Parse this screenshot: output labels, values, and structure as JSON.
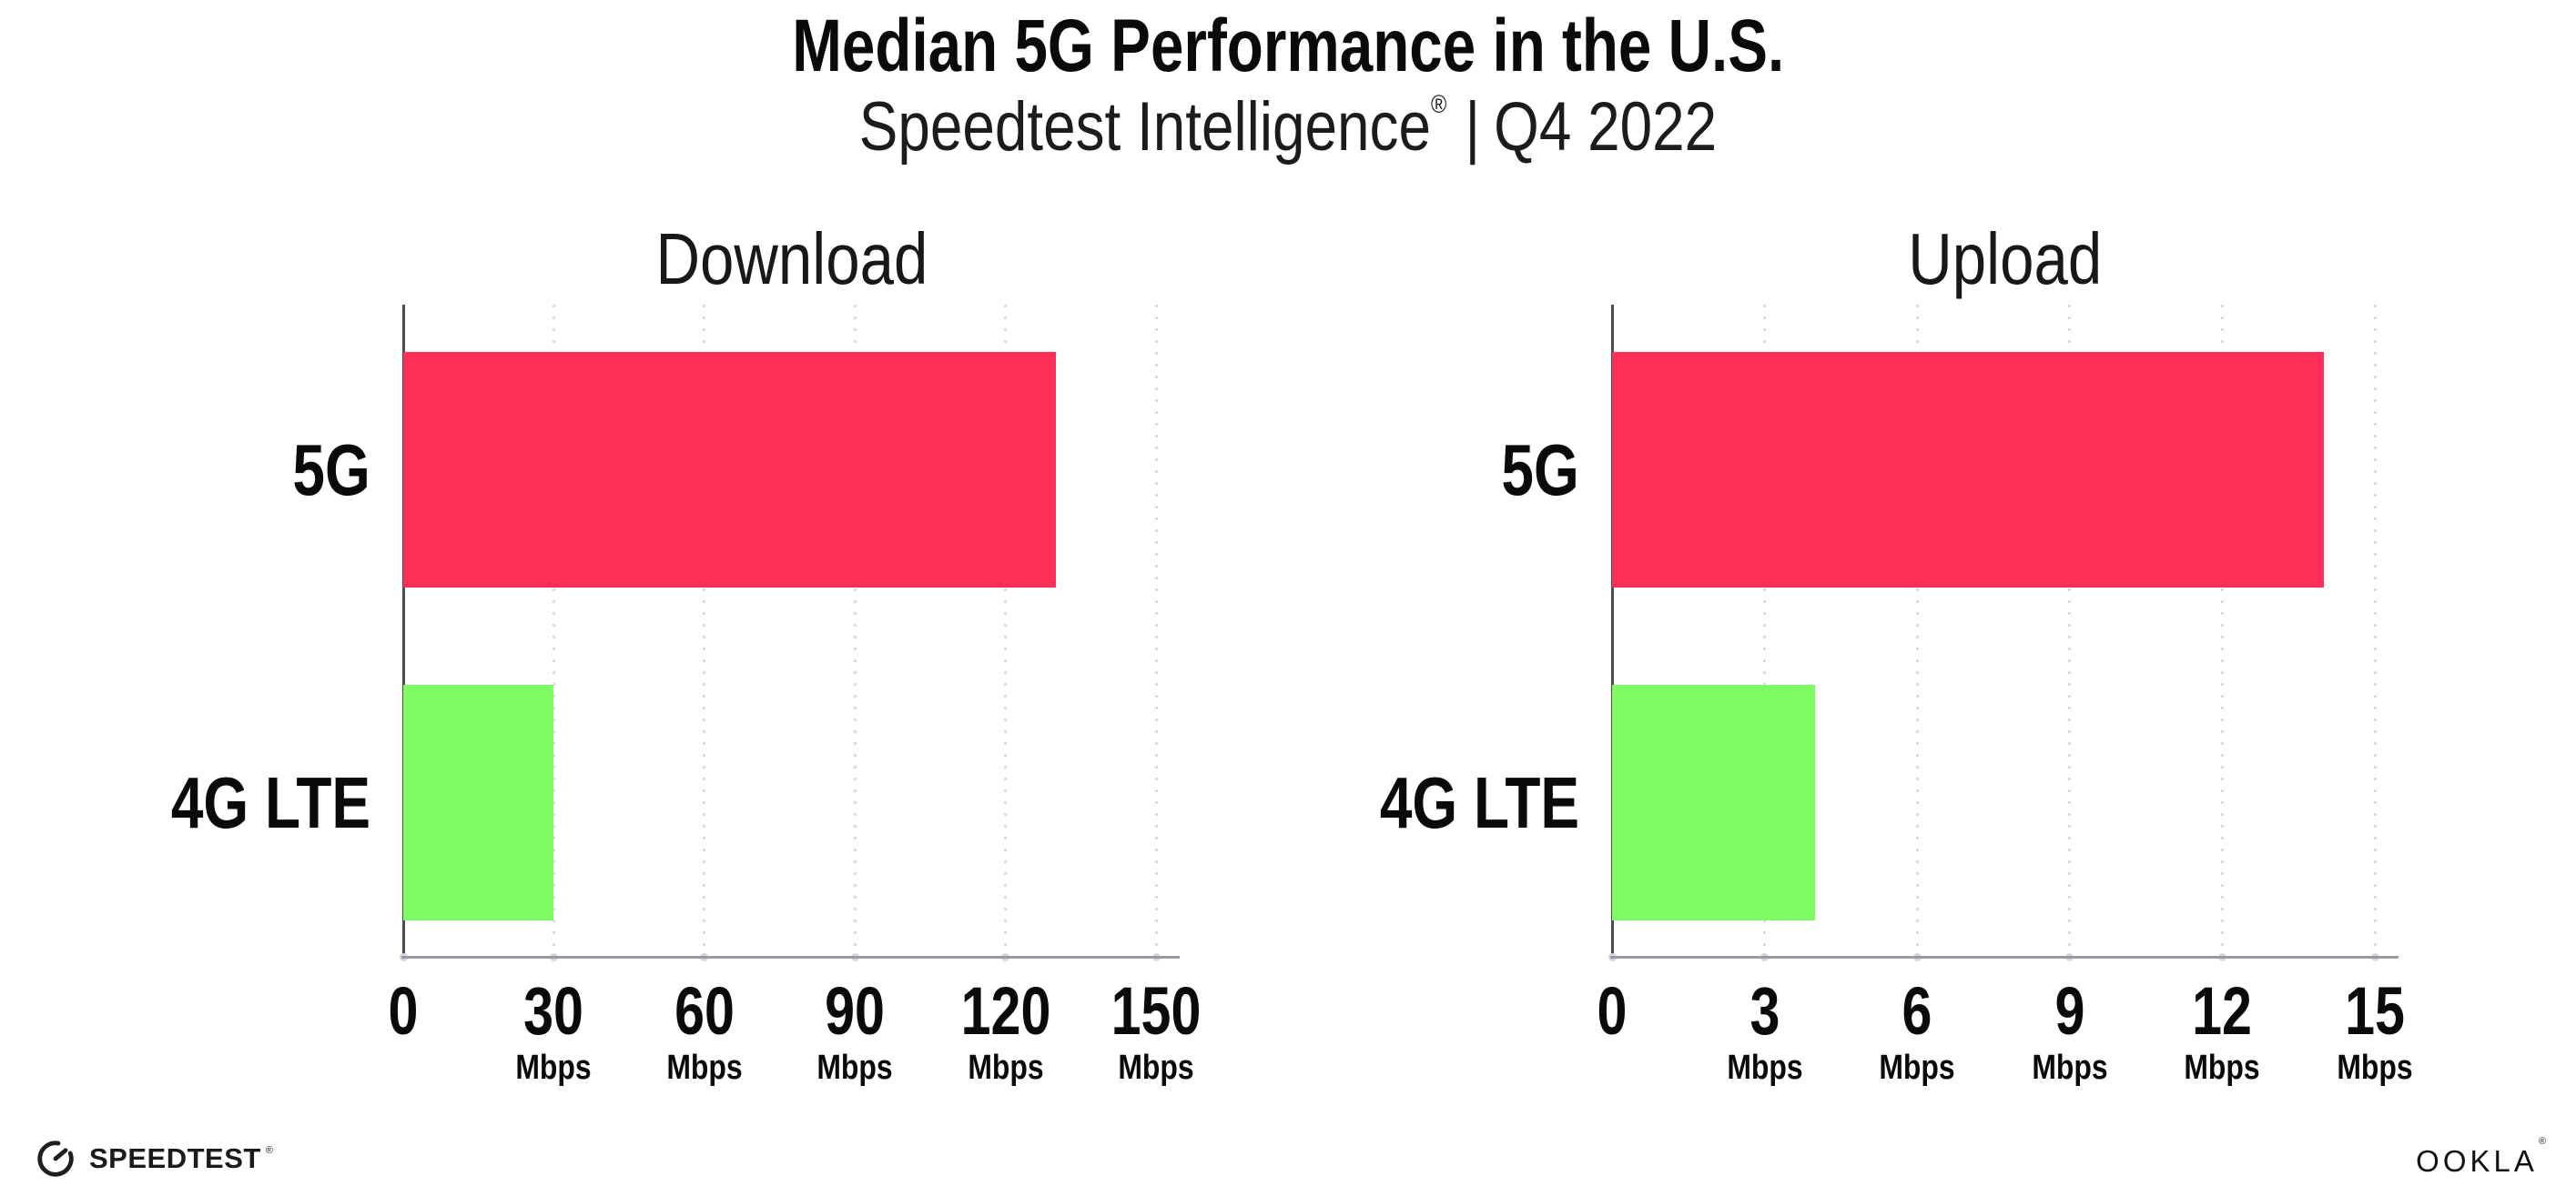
{
  "header": {
    "title": "Median 5G Performance in the U.S.",
    "subtitle": {
      "brand": "Speedtest Intelligence",
      "registered_mark": "®",
      "separator": "|",
      "period": "Q4 2022"
    }
  },
  "chart_data": [
    {
      "type": "bar",
      "orientation": "horizontal",
      "title": "Download",
      "categories": [
        "5G",
        "4G LTE"
      ],
      "values": [
        130,
        30
      ],
      "unit": "Mbps",
      "xlim": [
        0,
        150
      ],
      "xticks": [
        0,
        30,
        60,
        90,
        120,
        150
      ],
      "xtick_unit": "Mbps",
      "bar_colors": [
        "#fe2e58",
        "#7efb63"
      ],
      "grid": "dotted-vertical-at-major-ticks",
      "legend": "none"
    },
    {
      "type": "bar",
      "orientation": "horizontal",
      "title": "Upload",
      "categories": [
        "5G",
        "4G LTE"
      ],
      "values": [
        14,
        4
      ],
      "unit": "Mbps",
      "xlim": [
        0,
        15
      ],
      "xticks": [
        0,
        3,
        6,
        9,
        12,
        15
      ],
      "xtick_unit": "Mbps",
      "bar_colors": [
        "#fe2e58",
        "#7efb63"
      ],
      "grid": "dotted-vertical-at-major-ticks",
      "legend": "none"
    }
  ],
  "footer": {
    "speedtest_logo_text": "SPEEDTEST",
    "speedtest_mark": "®",
    "ookla_logo_text": "OOKLA",
    "ookla_mark": "®"
  },
  "colors": {
    "bar_5g": "#fe2e58",
    "bar_4g_lte": "#7efb63",
    "background": "#ffffff",
    "text": "#0a0a0a",
    "gridline": "#dadae4",
    "x_axis_line": "#9a9aa2",
    "y_axis_line": "#4c4c50"
  }
}
